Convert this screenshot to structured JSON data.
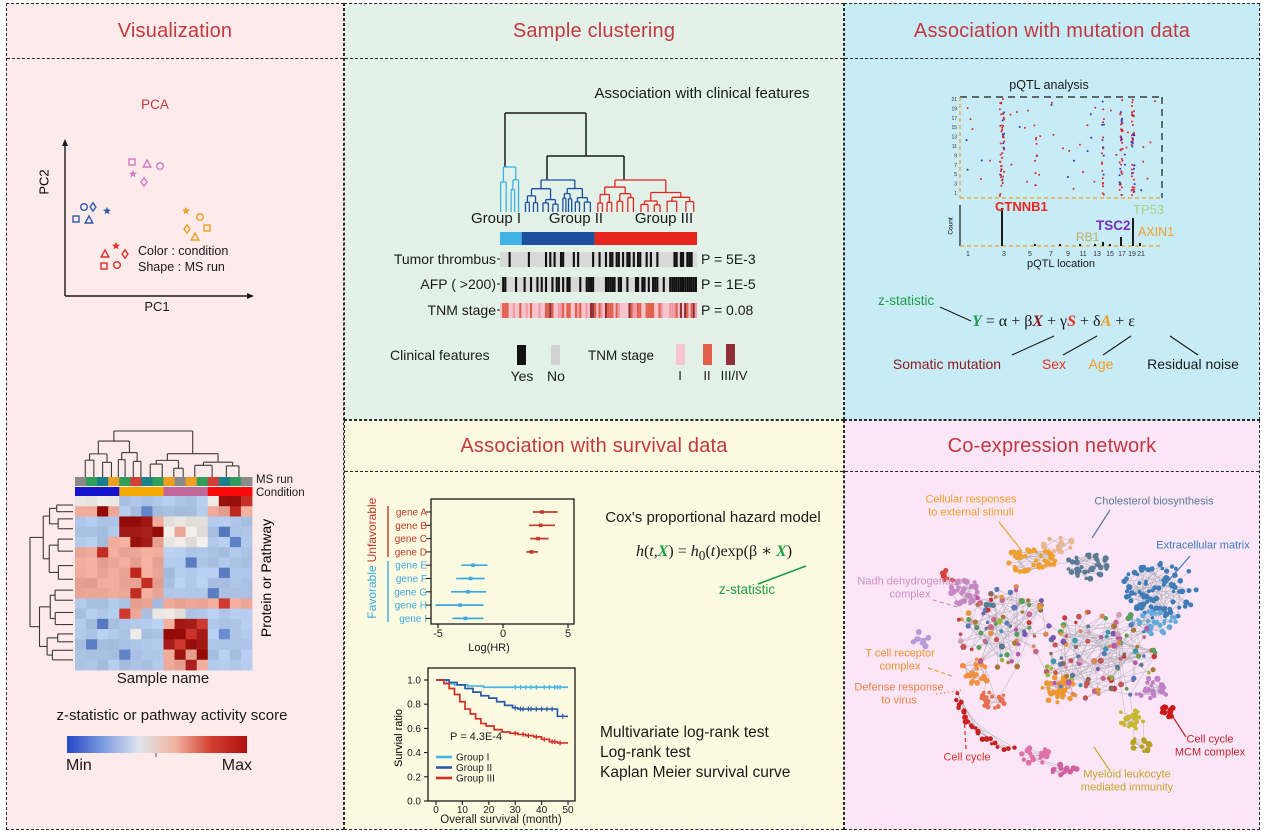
{
  "panels": {
    "visualization": {
      "title": "Visualization",
      "pca": {
        "title": "PCA",
        "xlabel": "PC1",
        "ylabel": "PC2",
        "legend1": "Color : condition",
        "legend2": "Shape : MS run",
        "chart_data": {
          "type": "scatter",
          "clusters": [
            {
              "condition": "violet",
              "color": "#cf7bc8",
              "points": [
                {
                  "shape": "square",
                  "x": 132,
                  "y": 162
                },
                {
                  "shape": "triangle",
                  "x": 147,
                  "y": 164
                },
                {
                  "shape": "circle",
                  "x": 160,
                  "y": 166
                },
                {
                  "shape": "star",
                  "x": 133,
                  "y": 174
                },
                {
                  "shape": "diamond",
                  "x": 144,
                  "y": 182
                }
              ]
            },
            {
              "condition": "blue",
              "color": "#2a5caa",
              "points": [
                {
                  "shape": "circle",
                  "x": 84,
                  "y": 207
                },
                {
                  "shape": "diamond",
                  "x": 93,
                  "y": 207
                },
                {
                  "shape": "star",
                  "x": 107,
                  "y": 211
                },
                {
                  "shape": "square",
                  "x": 76,
                  "y": 219
                },
                {
                  "shape": "triangle",
                  "x": 89,
                  "y": 220
                }
              ]
            },
            {
              "condition": "red",
              "color": "#e03028",
              "points": [
                {
                  "shape": "star",
                  "x": 116,
                  "y": 246
                },
                {
                  "shape": "triangle",
                  "x": 105,
                  "y": 254
                },
                {
                  "shape": "diamond",
                  "x": 125,
                  "y": 254
                },
                {
                  "shape": "square",
                  "x": 104,
                  "y": 266
                },
                {
                  "shape": "circle",
                  "x": 117,
                  "y": 265
                }
              ]
            },
            {
              "condition": "orange",
              "color": "#f0a020",
              "points": [
                {
                  "shape": "star",
                  "x": 186,
                  "y": 211
                },
                {
                  "shape": "circle",
                  "x": 200,
                  "y": 217
                },
                {
                  "shape": "diamond",
                  "x": 187,
                  "y": 229
                },
                {
                  "shape": "square",
                  "x": 207,
                  "y": 228
                },
                {
                  "shape": "triangle",
                  "x": 195,
                  "y": 237
                }
              ]
            }
          ]
        }
      },
      "heatmap": {
        "top_label_1": "MS run",
        "top_label_2": "Condition",
        "right_label": "Protein  or Pathway",
        "xlabel": "Sample name",
        "colorbar_title": "z-statistic or pathway activity score",
        "min_label": "Min",
        "max_label": "Max",
        "condition_colors": [
          "#1414cc",
          "#f5a800",
          "#c06898",
          "#fa0a0a"
        ],
        "msrun_colors": [
          "#8a8a8a",
          "#2f9e5a",
          "#17808a",
          "#f0a020",
          "#2f9e5a",
          "#d04038",
          "#17808a",
          "#2f9e5a",
          "#f0a020",
          "#8a8a8a",
          "#f0a020",
          "#2f9e5a",
          "#d04038",
          "#17808a",
          "#2f9e5a",
          "#8a8a8a"
        ],
        "grid": [
          "wwwwbbbbbbbbwDDR",
          "rrDrbbBbbbbbrrRr",
          "bbbbDDDrwwwwbbbb",
          "bbbbDDDDwrwwbBbb",
          "bbbrrDDrwwwwbbBb",
          "rrRrrrrrbbbbbbbb",
          "rrrrrrrrbbBbbbbb",
          "rrrrrRrrbbbbbBbb",
          "rrrrrrRrbbbbbbbb",
          "rrrrrRrrbbbbBbbb",
          "bbbbbrrbrrrrrRrr",
          "bbbbRrbwwwbbbbbb",
          "bbBbbbbbrDDRbbbb",
          "bbbbbwbbDDRDbBbb",
          "bBbbbbbbDRDDbbbb",
          "bbbbBbbbrDrDbbbb",
          "bbbbbbbbrrDrbbbb"
        ]
      }
    },
    "clustering": {
      "title": "Sample clustering",
      "subtitle": "Association with clinical features",
      "groups": [
        {
          "label": "Group I",
          "color": "#3fb3e3",
          "frac": 0.11
        },
        {
          "label": "Group II",
          "color": "#1d4fa1",
          "frac": 0.37
        },
        {
          "label": "Group III",
          "color": "#e62520",
          "frac": 0.52
        }
      ],
      "rows": [
        {
          "label": "Tumor thrombus",
          "pvalue": "P = 5E-3"
        },
        {
          "label": "AFP ( >200)",
          "pvalue": "P = 1E-5"
        },
        {
          "label": "TNM stage",
          "pvalue": "P = 0.08"
        }
      ],
      "legend": {
        "clinical_label": "Clinical features",
        "yes": "Yes",
        "no": "No",
        "yes_color": "#111111",
        "no_color": "#d2d2d2",
        "tnm_label": "TNM stage",
        "stages": [
          {
            "label": "I",
            "color": "#f8c6d0"
          },
          {
            "label": "II",
            "color": "#e45f49"
          },
          {
            "label": "III/IV",
            "color": "#8e2f36"
          }
        ]
      }
    },
    "mutation": {
      "title": "Association with mutation data",
      "plot_title": "pQTL analysis",
      "xlabel": "pQTL location",
      "ylabel": "Count",
      "x_ticks": [
        "1",
        "3",
        "5",
        "7",
        "9",
        "11",
        "13",
        "15",
        "17",
        "19",
        "21"
      ],
      "y_ticks": [
        "21",
        "19",
        "17",
        "15",
        "13",
        "11",
        "9",
        "7",
        "5",
        "3",
        "1"
      ],
      "genes": [
        {
          "name": "CTNNB1",
          "color": "#e8281e"
        },
        {
          "name": "TP53",
          "color": "#a6d285"
        },
        {
          "name": "TSC2",
          "color": "#7a2fbc"
        },
        {
          "name": "RB1",
          "color": "#c0b060"
        },
        {
          "name": "AXIN1",
          "color": "#f0a030"
        }
      ],
      "z_label": "z-statistic",
      "z_color": "#1e9c48",
      "formula_parts": [
        {
          "t": "Y",
          "c": "#1e9c48",
          "b": 1,
          "i": 1
        },
        {
          "t": " = α + β"
        },
        {
          "t": "X",
          "c": "#8b1a1a",
          "b": 1,
          "i": 1
        },
        {
          "t": " + γ"
        },
        {
          "t": "S",
          "c": "#e8321e",
          "b": 1,
          "i": 1
        },
        {
          "t": " + δ"
        },
        {
          "t": "A",
          "c": "#f59a23",
          "b": 1,
          "i": 1
        },
        {
          "t": " + ε"
        }
      ],
      "annotations": [
        {
          "text": "Somatic mutation",
          "color": "#8b1a1a"
        },
        {
          "text": "Sex",
          "color": "#e8321e"
        },
        {
          "text": "Age",
          "color": "#f59a23"
        },
        {
          "text": "Residual noise",
          "color": "#1a1a1a"
        }
      ]
    },
    "survival": {
      "title": "Association with survival data",
      "cox_title": "Cox's proportional hazard model",
      "cox_parts": [
        {
          "t": "h",
          "i": 1
        },
        {
          "t": "("
        },
        {
          "t": "t",
          "i": 1
        },
        {
          "t": ","
        },
        {
          "t": "X",
          "c": "#1e9c48",
          "b": 1,
          "i": 1
        },
        {
          "t": ") = "
        },
        {
          "t": "h",
          "i": 1
        },
        {
          "t": "0",
          "sub": 1
        },
        {
          "t": "("
        },
        {
          "t": "t",
          "i": 1
        },
        {
          "t": ")exp(β ∗ "
        },
        {
          "t": "X",
          "c": "#1e9c48",
          "b": 1,
          "i": 1
        },
        {
          "t": ")"
        }
      ],
      "z_label": "z-statistic",
      "z_color": "#1e9c48",
      "forest": {
        "type": "scatter",
        "xlabel": "Log(HR)",
        "x_ticks": [
          "-5",
          "0",
          "5"
        ],
        "unfavorable_label": "Unfavorable",
        "favorable_label": "Favorable",
        "unfavorable_color": "#c0392b",
        "favorable_color": "#3da9e0",
        "genes": [
          {
            "name": "gene A",
            "group": "unfavorable",
            "hr": 3.0,
            "lo": 2.3,
            "hi": 4.2
          },
          {
            "name": "gene B",
            "group": "unfavorable",
            "hr": 2.9,
            "lo": 2.0,
            "hi": 4.0
          },
          {
            "name": "gene C",
            "group": "unfavorable",
            "hr": 2.7,
            "lo": 2.1,
            "hi": 3.5
          },
          {
            "name": "gene D",
            "group": "unfavorable",
            "hr": 2.2,
            "lo": 1.8,
            "hi": 2.7
          },
          {
            "name": "gene E",
            "group": "favorable",
            "hr": -2.3,
            "lo": -3.2,
            "hi": -1.2
          },
          {
            "name": "gene F",
            "group": "favorable",
            "hr": -2.5,
            "lo": -3.6,
            "hi": -1.4
          },
          {
            "name": "gene G",
            "group": "favorable",
            "hr": -2.7,
            "lo": -4.0,
            "hi": -1.3
          },
          {
            "name": "gene H",
            "group": "favorable",
            "hr": -3.3,
            "lo": -5.2,
            "hi": -1.5
          },
          {
            "name": "gene I",
            "group": "favorable",
            "hr": -2.9,
            "lo": -3.9,
            "hi": -1.5
          }
        ]
      },
      "km": {
        "type": "line-step",
        "ylabel": "Survial ratio",
        "xlabel": "Overall survival (month)",
        "p_label": "P = 4.3E-4",
        "x_ticks": [
          "0",
          "10",
          "20",
          "30",
          "40",
          "50"
        ],
        "y_ticks": [
          "1.0",
          "0.8",
          "0.6",
          "0.4",
          "0.2",
          "0.0"
        ],
        "series": [
          {
            "label": "Group I",
            "color": "#45b8e8",
            "points": [
              [
                0,
                1.0
              ],
              [
                4,
                0.97
              ],
              [
                7,
                0.96
              ],
              [
                12,
                0.95
              ],
              [
                18,
                0.94
              ],
              [
                50,
                0.94
              ]
            ],
            "censors": [
              30,
              32,
              34,
              36,
              38,
              41,
              43,
              45,
              46,
              47
            ]
          },
          {
            "label": "Group II",
            "color": "#2b5cab",
            "points": [
              [
                0,
                1.0
              ],
              [
                5,
                0.98
              ],
              [
                8,
                0.96
              ],
              [
                11,
                0.93
              ],
              [
                14,
                0.9
              ],
              [
                17,
                0.87
              ],
              [
                20,
                0.85
              ],
              [
                23,
                0.82
              ],
              [
                26,
                0.79
              ],
              [
                29,
                0.77
              ],
              [
                31,
                0.76
              ],
              [
                45,
                0.76
              ],
              [
                46,
                0.7
              ],
              [
                50,
                0.7
              ]
            ],
            "censors": [
              30,
              32,
              33,
              35,
              36,
              38,
              40,
              42,
              44,
              48
            ]
          },
          {
            "label": "Group III",
            "color": "#d32f27",
            "points": [
              [
                0,
                1.0
              ],
              [
                3,
                0.97
              ],
              [
                5,
                0.93
              ],
              [
                7,
                0.88
              ],
              [
                9,
                0.82
              ],
              [
                11,
                0.76
              ],
              [
                13,
                0.72
              ],
              [
                15,
                0.68
              ],
              [
                17,
                0.64
              ],
              [
                19,
                0.62
              ],
              [
                22,
                0.59
              ],
              [
                25,
                0.57
              ],
              [
                28,
                0.56
              ],
              [
                31,
                0.55
              ],
              [
                34,
                0.54
              ],
              [
                37,
                0.53
              ],
              [
                40,
                0.51
              ],
              [
                43,
                0.49
              ],
              [
                46,
                0.48
              ],
              [
                50,
                0.48
              ]
            ],
            "censors": [
              30,
              33,
              35,
              38,
              41,
              44,
              45,
              47
            ]
          }
        ]
      },
      "tests": [
        "Multivariate log-rank test",
        "Log-rank test",
        "Kaplan Meier survival curve"
      ]
    },
    "network": {
      "title": "Co-expression network",
      "clusters": [
        {
          "lines": [
            "Cellular responses",
            "to external stimuli"
          ],
          "color": "#f09f2a"
        },
        {
          "lines": [
            "Cholesterol biosynthesis"
          ],
          "color": "#5a7a96"
        },
        {
          "lines": [
            "Extracellular matrix"
          ],
          "color": "#3c78c0"
        },
        {
          "lines": [
            "Nadh dehydrogenase",
            "complex"
          ],
          "color": "#cf8fc0"
        },
        {
          "lines": [
            "T cell receptor",
            "complex"
          ],
          "color": "#f0922e"
        },
        {
          "lines": [
            "Defense response",
            "to virus"
          ],
          "color": "#ef8244"
        },
        {
          "lines": [
            "Cell cycle"
          ],
          "color": "#e33028"
        },
        {
          "lines": [
            "Cell cycle",
            "MCM complex"
          ],
          "color": "#c5242c"
        },
        {
          "lines": [
            "Myeloid leukocyte",
            "mediated immunity"
          ],
          "color": "#c9a42c"
        }
      ]
    }
  }
}
